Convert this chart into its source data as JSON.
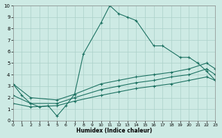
{
  "xlabel": "Humidex (Indice chaleur)",
  "xlim": [
    0,
    23
  ],
  "ylim": [
    0,
    10
  ],
  "xticks": [
    0,
    1,
    2,
    3,
    4,
    5,
    6,
    7,
    8,
    9,
    10,
    11,
    12,
    13,
    14,
    15,
    16,
    17,
    18,
    19,
    20,
    21,
    22,
    23
  ],
  "yticks": [
    0,
    1,
    2,
    3,
    4,
    5,
    6,
    7,
    8,
    9,
    10
  ],
  "background_color": "#cdeae4",
  "grid_color": "#aad0c8",
  "line_color": "#1a7060",
  "line1_x": [
    0,
    1,
    2,
    3,
    4,
    5,
    6,
    7,
    8,
    10,
    11,
    12,
    13,
    14,
    16,
    17,
    19,
    20,
    21,
    22,
    23
  ],
  "line1_y": [
    3.2,
    2.2,
    1.5,
    1.2,
    1.3,
    0.4,
    1.3,
    2.3,
    5.8,
    8.5,
    10.0,
    9.3,
    9.0,
    8.7,
    6.5,
    6.5,
    5.5,
    5.5,
    5.0,
    4.3,
    3.5
  ],
  "line2_x": [
    0,
    2,
    5,
    7,
    10,
    12,
    14,
    16,
    18,
    20,
    22,
    23
  ],
  "line2_y": [
    3.2,
    2.0,
    1.8,
    2.3,
    3.2,
    3.5,
    3.8,
    4.0,
    4.2,
    4.5,
    5.0,
    4.5
  ],
  "line3_x": [
    0,
    2,
    5,
    7,
    10,
    12,
    14,
    16,
    18,
    20,
    22,
    23
  ],
  "line3_y": [
    2.2,
    1.5,
    1.5,
    2.0,
    2.7,
    3.0,
    3.3,
    3.5,
    3.8,
    4.0,
    4.5,
    4.0
  ],
  "line4_x": [
    0,
    2,
    5,
    7,
    10,
    12,
    14,
    16,
    18,
    20,
    22,
    23
  ],
  "line4_y": [
    1.5,
    1.2,
    1.3,
    1.7,
    2.2,
    2.5,
    2.8,
    3.0,
    3.2,
    3.5,
    3.8,
    3.5
  ]
}
